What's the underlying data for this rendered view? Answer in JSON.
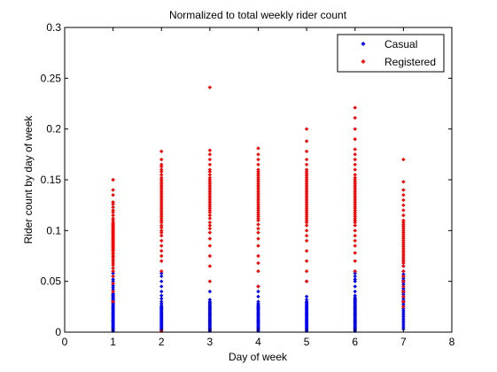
{
  "chart_data": {
    "type": "scatter",
    "title": "Normalized to total weekly rider count",
    "xlabel": "Day of week",
    "ylabel": "Rider count by day of week",
    "xlim": [
      0,
      8
    ],
    "ylim": [
      0,
      0.3
    ],
    "xticks": [
      "0",
      "1",
      "2",
      "3",
      "4",
      "5",
      "6",
      "7",
      "8"
    ],
    "yticks": [
      "0",
      "0.05",
      "0.1",
      "0.15",
      "0.2",
      "0.25",
      "0.3"
    ],
    "grid": false,
    "legend_position": "top-right",
    "series": [
      {
        "name": "Casual",
        "color": "#0000ff",
        "marker": "diamond",
        "points_by_day": [
          {
            "day": 1,
            "values": [
              0.001,
              0.002,
              0.003,
              0.004,
              0.005,
              0.006,
              0.007,
              0.008,
              0.009,
              0.01,
              0.011,
              0.012,
              0.013,
              0.014,
              0.015,
              0.016,
              0.017,
              0.018,
              0.019,
              0.02,
              0.021,
              0.022,
              0.023,
              0.024,
              0.025,
              0.026,
              0.027,
              0.028,
              0.029,
              0.03,
              0.031,
              0.032,
              0.033,
              0.034,
              0.035,
              0.036,
              0.037,
              0.038,
              0.04,
              0.042,
              0.044,
              0.046,
              0.048,
              0.05,
              0.052,
              0.055,
              0.058,
              0.06
            ]
          },
          {
            "day": 2,
            "values": [
              0.001,
              0.002,
              0.003,
              0.004,
              0.005,
              0.006,
              0.007,
              0.008,
              0.009,
              0.01,
              0.011,
              0.012,
              0.013,
              0.014,
              0.015,
              0.016,
              0.017,
              0.018,
              0.019,
              0.02,
              0.021,
              0.022,
              0.023,
              0.024,
              0.025,
              0.026,
              0.028,
              0.03,
              0.033,
              0.036,
              0.04,
              0.045,
              0.05,
              0.055,
              0.058
            ]
          },
          {
            "day": 3,
            "values": [
              0.001,
              0.002,
              0.003,
              0.004,
              0.005,
              0.006,
              0.007,
              0.008,
              0.009,
              0.01,
              0.011,
              0.012,
              0.013,
              0.014,
              0.015,
              0.016,
              0.017,
              0.018,
              0.019,
              0.02,
              0.021,
              0.022,
              0.023,
              0.024,
              0.025,
              0.026,
              0.027,
              0.028,
              0.029,
              0.03,
              0.032,
              0.04
            ]
          },
          {
            "day": 4,
            "values": [
              0.001,
              0.002,
              0.003,
              0.004,
              0.005,
              0.006,
              0.007,
              0.008,
              0.009,
              0.01,
              0.011,
              0.012,
              0.013,
              0.014,
              0.015,
              0.016,
              0.017,
              0.018,
              0.019,
              0.02,
              0.021,
              0.022,
              0.023,
              0.024,
              0.025,
              0.026,
              0.027,
              0.028,
              0.03,
              0.035,
              0.04,
              0.045
            ]
          },
          {
            "day": 5,
            "values": [
              0.001,
              0.002,
              0.003,
              0.004,
              0.005,
              0.006,
              0.007,
              0.008,
              0.009,
              0.01,
              0.011,
              0.012,
              0.013,
              0.014,
              0.015,
              0.016,
              0.017,
              0.018,
              0.019,
              0.02,
              0.021,
              0.022,
              0.023,
              0.024,
              0.025,
              0.026,
              0.027,
              0.028,
              0.029,
              0.03,
              0.032,
              0.035,
              0.05
            ]
          },
          {
            "day": 6,
            "values": [
              0.001,
              0.002,
              0.003,
              0.004,
              0.005,
              0.006,
              0.007,
              0.008,
              0.009,
              0.01,
              0.011,
              0.012,
              0.013,
              0.014,
              0.015,
              0.016,
              0.017,
              0.018,
              0.019,
              0.02,
              0.021,
              0.022,
              0.023,
              0.024,
              0.025,
              0.026,
              0.027,
              0.028,
              0.029,
              0.03,
              0.031,
              0.032,
              0.033,
              0.034,
              0.036,
              0.04,
              0.045,
              0.05,
              0.052,
              0.055,
              0.058,
              0.06
            ]
          },
          {
            "day": 7,
            "values": [
              0.003,
              0.005,
              0.007,
              0.009,
              0.011,
              0.013,
              0.015,
              0.017,
              0.019,
              0.021,
              0.023,
              0.025,
              0.027,
              0.029,
              0.031,
              0.033,
              0.035,
              0.037,
              0.039,
              0.041,
              0.043,
              0.045,
              0.047,
              0.049,
              0.051,
              0.053,
              0.055,
              0.057,
              0.06,
              0.065,
              0.07
            ]
          }
        ]
      },
      {
        "name": "Registered",
        "color": "#ff0000",
        "marker": "diamond",
        "points_by_day": [
          {
            "day": 1,
            "values": [
              0.03,
              0.04,
              0.048,
              0.055,
              0.06,
              0.063,
              0.066,
              0.068,
              0.07,
              0.072,
              0.074,
              0.075,
              0.077,
              0.078,
              0.08,
              0.081,
              0.082,
              0.083,
              0.084,
              0.085,
              0.086,
              0.087,
              0.088,
              0.089,
              0.09,
              0.091,
              0.092,
              0.093,
              0.094,
              0.095,
              0.096,
              0.097,
              0.098,
              0.099,
              0.1,
              0.101,
              0.102,
              0.103,
              0.104,
              0.105,
              0.106,
              0.107,
              0.108,
              0.11,
              0.112,
              0.115,
              0.118,
              0.12,
              0.123,
              0.126,
              0.128,
              0.135,
              0.14,
              0.15
            ]
          },
          {
            "day": 2,
            "values": [
              0.001,
              0.06,
              0.07,
              0.075,
              0.08,
              0.085,
              0.09,
              0.095,
              0.098,
              0.1,
              0.103,
              0.105,
              0.108,
              0.11,
              0.112,
              0.114,
              0.116,
              0.118,
              0.12,
              0.122,
              0.124,
              0.126,
              0.128,
              0.13,
              0.132,
              0.134,
              0.136,
              0.138,
              0.14,
              0.142,
              0.144,
              0.146,
              0.148,
              0.15,
              0.152,
              0.155,
              0.158,
              0.16,
              0.163,
              0.165,
              0.17,
              0.178
            ]
          },
          {
            "day": 3,
            "values": [
              0.05,
              0.065,
              0.075,
              0.085,
              0.092,
              0.098,
              0.102,
              0.105,
              0.108,
              0.112,
              0.115,
              0.118,
              0.12,
              0.122,
              0.124,
              0.126,
              0.128,
              0.13,
              0.132,
              0.134,
              0.136,
              0.138,
              0.14,
              0.142,
              0.144,
              0.146,
              0.148,
              0.15,
              0.152,
              0.155,
              0.158,
              0.16,
              0.165,
              0.17,
              0.175,
              0.179,
              0.241
            ]
          },
          {
            "day": 4,
            "values": [
              0.045,
              0.06,
              0.068,
              0.075,
              0.085,
              0.092,
              0.098,
              0.102,
              0.106,
              0.11,
              0.112,
              0.114,
              0.116,
              0.118,
              0.12,
              0.122,
              0.124,
              0.126,
              0.128,
              0.13,
              0.132,
              0.134,
              0.136,
              0.138,
              0.14,
              0.142,
              0.144,
              0.146,
              0.148,
              0.15,
              0.152,
              0.154,
              0.156,
              0.158,
              0.16,
              0.165,
              0.17,
              0.175,
              0.181
            ]
          },
          {
            "day": 5,
            "values": [
              0.05,
              0.06,
              0.07,
              0.08,
              0.09,
              0.095,
              0.1,
              0.105,
              0.108,
              0.11,
              0.112,
              0.114,
              0.116,
              0.118,
              0.12,
              0.122,
              0.124,
              0.126,
              0.128,
              0.13,
              0.132,
              0.134,
              0.136,
              0.138,
              0.14,
              0.142,
              0.144,
              0.146,
              0.148,
              0.15,
              0.152,
              0.154,
              0.156,
              0.158,
              0.16,
              0.165,
              0.17,
              0.178,
              0.188,
              0.2
            ]
          },
          {
            "day": 6,
            "values": [
              0.06,
              0.07,
              0.078,
              0.085,
              0.09,
              0.095,
              0.1,
              0.105,
              0.108,
              0.11,
              0.112,
              0.114,
              0.116,
              0.118,
              0.12,
              0.122,
              0.124,
              0.126,
              0.128,
              0.13,
              0.132,
              0.134,
              0.136,
              0.138,
              0.14,
              0.142,
              0.144,
              0.146,
              0.148,
              0.15,
              0.152,
              0.155,
              0.16,
              0.165,
              0.17,
              0.175,
              0.18,
              0.19,
              0.2,
              0.211,
              0.221
            ]
          },
          {
            "day": 7,
            "values": [
              0.025,
              0.03,
              0.035,
              0.04,
              0.045,
              0.05,
              0.055,
              0.06,
              0.065,
              0.068,
              0.07,
              0.072,
              0.074,
              0.076,
              0.078,
              0.08,
              0.082,
              0.084,
              0.086,
              0.088,
              0.09,
              0.092,
              0.094,
              0.096,
              0.098,
              0.1,
              0.102,
              0.104,
              0.106,
              0.108,
              0.11,
              0.115,
              0.12,
              0.125,
              0.13,
              0.135,
              0.14,
              0.148,
              0.17
            ]
          }
        ]
      }
    ]
  }
}
